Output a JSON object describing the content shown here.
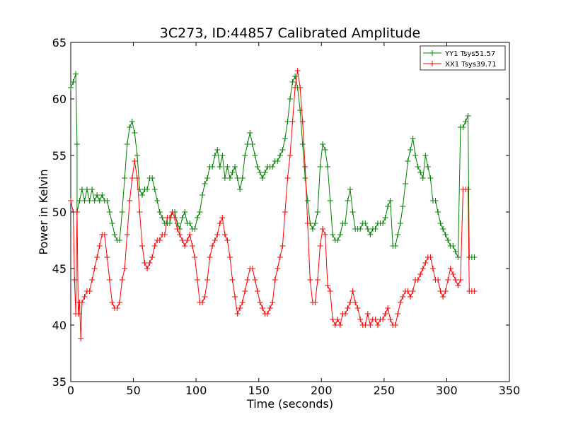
{
  "chart_data": {
    "type": "line",
    "title": "3C273, ID:44857 Calibrated Amplitude",
    "xlabel": "Time (seconds)",
    "ylabel": "Power in Kelvin",
    "xlim": [
      0,
      350
    ],
    "ylim": [
      35,
      65
    ],
    "x_ticks": [
      "0",
      "50",
      "100",
      "150",
      "200",
      "250",
      "300",
      "350"
    ],
    "y_ticks": [
      "35",
      "40",
      "45",
      "50",
      "55",
      "60",
      "65"
    ],
    "grid": false,
    "legend_placement": "top-right",
    "marker": "+",
    "series": [
      {
        "name": "YY1 Tsys51.57",
        "color": "#008000",
        "points": [
          [
            0,
            61
          ],
          [
            2,
            61.5
          ],
          [
            4,
            62.2
          ],
          [
            5,
            56
          ],
          [
            5,
            50
          ],
          [
            7,
            51
          ],
          [
            9,
            52
          ],
          [
            11,
            51
          ],
          [
            13,
            52
          ],
          [
            15,
            51
          ],
          [
            17,
            52
          ],
          [
            19,
            51
          ],
          [
            21,
            51.5
          ],
          [
            23,
            51
          ],
          [
            25,
            51.5
          ],
          [
            27,
            51
          ],
          [
            29,
            51
          ],
          [
            31,
            50
          ],
          [
            33,
            49
          ],
          [
            35,
            48
          ],
          [
            37,
            47.5
          ],
          [
            39,
            47.5
          ],
          [
            41,
            50
          ],
          [
            43,
            53
          ],
          [
            45,
            56
          ],
          [
            47,
            57.5
          ],
          [
            49,
            58
          ],
          [
            51,
            57
          ],
          [
            53,
            55
          ],
          [
            55,
            52
          ],
          [
            57,
            51.5
          ],
          [
            59,
            52
          ],
          [
            61,
            52
          ],
          [
            63,
            53
          ],
          [
            65,
            53
          ],
          [
            67,
            52
          ],
          [
            69,
            51
          ],
          [
            71,
            50
          ],
          [
            73,
            49.5
          ],
          [
            75,
            49
          ],
          [
            77,
            49
          ],
          [
            79,
            49
          ],
          [
            81,
            50
          ],
          [
            83,
            50
          ],
          [
            85,
            49
          ],
          [
            87,
            48.5
          ],
          [
            89,
            49.5
          ],
          [
            91,
            50
          ],
          [
            93,
            49
          ],
          [
            95,
            49
          ],
          [
            97,
            48.5
          ],
          [
            99,
            48.5
          ],
          [
            101,
            49.5
          ],
          [
            103,
            50
          ],
          [
            105,
            51.5
          ],
          [
            107,
            52.5
          ],
          [
            109,
            53
          ],
          [
            111,
            54
          ],
          [
            113,
            54
          ],
          [
            115,
            55
          ],
          [
            117,
            55.5
          ],
          [
            119,
            54
          ],
          [
            121,
            55
          ],
          [
            123,
            53
          ],
          [
            125,
            54
          ],
          [
            127,
            53
          ],
          [
            129,
            53.5
          ],
          [
            131,
            54
          ],
          [
            133,
            53
          ],
          [
            135,
            52
          ],
          [
            137,
            53
          ],
          [
            139,
            55
          ],
          [
            141,
            56
          ],
          [
            143,
            57
          ],
          [
            145,
            56
          ],
          [
            147,
            55
          ],
          [
            149,
            54
          ],
          [
            151,
            53.5
          ],
          [
            153,
            53
          ],
          [
            155,
            53.5
          ],
          [
            157,
            54
          ],
          [
            159,
            54
          ],
          [
            161,
            54
          ],
          [
            163,
            54.5
          ],
          [
            165,
            54.5
          ],
          [
            167,
            55
          ],
          [
            169,
            55.5
          ],
          [
            171,
            56.5
          ],
          [
            173,
            58
          ],
          [
            175,
            60
          ],
          [
            177,
            61.5
          ],
          [
            179,
            62
          ],
          [
            181,
            61
          ],
          [
            183,
            59
          ],
          [
            185,
            56
          ],
          [
            187,
            53
          ],
          [
            189,
            51
          ],
          [
            191,
            49
          ],
          [
            193,
            48.5
          ],
          [
            195,
            49
          ],
          [
            197,
            50
          ],
          [
            199,
            54
          ],
          [
            201,
            56
          ],
          [
            203,
            55.5
          ],
          [
            205,
            54
          ],
          [
            207,
            51
          ],
          [
            209,
            48
          ],
          [
            211,
            47.5
          ],
          [
            213,
            47.5
          ],
          [
            215,
            48
          ],
          [
            217,
            49
          ],
          [
            219,
            49
          ],
          [
            221,
            51
          ],
          [
            223,
            52
          ],
          [
            225,
            50
          ],
          [
            227,
            48.5
          ],
          [
            229,
            48.5
          ],
          [
            231,
            48.5
          ],
          [
            233,
            49
          ],
          [
            235,
            49
          ],
          [
            237,
            48.5
          ],
          [
            239,
            48
          ],
          [
            241,
            48.5
          ],
          [
            243,
            48.5
          ],
          [
            245,
            49
          ],
          [
            247,
            49
          ],
          [
            249,
            49
          ],
          [
            251,
            49.5
          ],
          [
            253,
            50.5
          ],
          [
            255,
            51
          ],
          [
            257,
            47
          ],
          [
            259,
            47
          ],
          [
            261,
            48
          ],
          [
            263,
            49
          ],
          [
            265,
            50.5
          ],
          [
            267,
            52.5
          ],
          [
            269,
            54.5
          ],
          [
            271,
            55.5
          ],
          [
            273,
            56.5
          ],
          [
            275,
            55
          ],
          [
            277,
            54
          ],
          [
            279,
            53.5
          ],
          [
            281,
            53
          ],
          [
            283,
            55
          ],
          [
            285,
            54
          ],
          [
            287,
            53
          ],
          [
            289,
            51
          ],
          [
            291,
            51
          ],
          [
            293,
            50
          ],
          [
            295,
            49
          ],
          [
            297,
            48.5
          ],
          [
            299,
            48
          ],
          [
            301,
            47.5
          ],
          [
            303,
            47
          ],
          [
            305,
            47
          ],
          [
            307,
            46.5
          ],
          [
            309,
            46
          ],
          [
            311,
            57.5
          ],
          [
            313,
            57.5
          ],
          [
            315,
            58
          ],
          [
            317,
            58.5
          ],
          [
            318,
            46
          ],
          [
            320,
            46
          ],
          [
            322,
            46
          ]
        ]
      },
      {
        "name": "XX1 Tsys39.71",
        "color": "#ff0000",
        "points": [
          [
            0,
            51
          ],
          [
            2,
            50
          ],
          [
            3,
            44
          ],
          [
            4,
            41
          ],
          [
            5,
            50
          ],
          [
            6,
            41
          ],
          [
            7,
            42
          ],
          [
            8,
            38.8
          ],
          [
            9,
            42
          ],
          [
            11,
            42.5
          ],
          [
            13,
            43
          ],
          [
            15,
            43
          ],
          [
            17,
            44
          ],
          [
            19,
            45
          ],
          [
            21,
            46
          ],
          [
            23,
            47
          ],
          [
            25,
            48
          ],
          [
            27,
            48
          ],
          [
            29,
            46
          ],
          [
            31,
            44
          ],
          [
            33,
            42
          ],
          [
            35,
            41.5
          ],
          [
            37,
            41.5
          ],
          [
            39,
            42
          ],
          [
            41,
            44
          ],
          [
            43,
            45
          ],
          [
            45,
            48
          ],
          [
            47,
            51
          ],
          [
            49,
            53
          ],
          [
            51,
            54.5
          ],
          [
            53,
            53
          ],
          [
            55,
            50
          ],
          [
            57,
            47
          ],
          [
            59,
            45.5
          ],
          [
            61,
            45
          ],
          [
            63,
            45.5
          ],
          [
            65,
            46
          ],
          [
            67,
            47
          ],
          [
            69,
            47.5
          ],
          [
            71,
            47.5
          ],
          [
            73,
            48
          ],
          [
            75,
            48
          ],
          [
            77,
            49.5
          ],
          [
            79,
            49.5
          ],
          [
            81,
            50
          ],
          [
            83,
            49.5
          ],
          [
            85,
            48.5
          ],
          [
            87,
            48
          ],
          [
            89,
            47.5
          ],
          [
            91,
            47
          ],
          [
            93,
            47.5
          ],
          [
            95,
            48
          ],
          [
            97,
            47
          ],
          [
            99,
            46
          ],
          [
            101,
            44
          ],
          [
            103,
            42
          ],
          [
            105,
            42
          ],
          [
            107,
            42.5
          ],
          [
            109,
            44
          ],
          [
            111,
            46
          ],
          [
            113,
            47
          ],
          [
            115,
            47.5
          ],
          [
            117,
            48
          ],
          [
            119,
            49
          ],
          [
            121,
            49.5
          ],
          [
            123,
            48
          ],
          [
            125,
            47.5
          ],
          [
            127,
            46
          ],
          [
            129,
            44
          ],
          [
            131,
            42.5
          ],
          [
            133,
            41
          ],
          [
            135,
            41.5
          ],
          [
            137,
            42
          ],
          [
            139,
            43
          ],
          [
            141,
            44
          ],
          [
            143,
            45
          ],
          [
            145,
            45
          ],
          [
            147,
            44
          ],
          [
            149,
            43
          ],
          [
            151,
            42
          ],
          [
            153,
            41.5
          ],
          [
            155,
            41
          ],
          [
            157,
            41
          ],
          [
            159,
            41.5
          ],
          [
            161,
            42
          ],
          [
            163,
            44
          ],
          [
            165,
            45
          ],
          [
            167,
            46
          ],
          [
            169,
            47
          ],
          [
            171,
            50
          ],
          [
            173,
            53
          ],
          [
            175,
            55
          ],
          [
            177,
            58
          ],
          [
            179,
            61
          ],
          [
            181,
            62.5
          ],
          [
            183,
            61
          ],
          [
            185,
            58
          ],
          [
            187,
            54
          ],
          [
            189,
            49
          ],
          [
            191,
            44
          ],
          [
            193,
            42
          ],
          [
            195,
            42
          ],
          [
            197,
            44
          ],
          [
            199,
            47
          ],
          [
            201,
            48.5
          ],
          [
            203,
            48
          ],
          [
            205,
            43.5
          ],
          [
            207,
            43
          ],
          [
            209,
            40.5
          ],
          [
            211,
            40
          ],
          [
            213,
            40.5
          ],
          [
            215,
            40
          ],
          [
            217,
            41
          ],
          [
            219,
            41
          ],
          [
            221,
            41.5
          ],
          [
            223,
            42
          ],
          [
            225,
            43
          ],
          [
            227,
            42
          ],
          [
            229,
            41.5
          ],
          [
            231,
            40.5
          ],
          [
            233,
            40
          ],
          [
            235,
            40
          ],
          [
            237,
            41
          ],
          [
            239,
            40
          ],
          [
            241,
            40.5
          ],
          [
            243,
            40.5
          ],
          [
            245,
            40
          ],
          [
            247,
            40.5
          ],
          [
            249,
            40.5
          ],
          [
            251,
            41
          ],
          [
            253,
            41.5
          ],
          [
            255,
            40.5
          ],
          [
            257,
            40
          ],
          [
            259,
            40
          ],
          [
            261,
            41
          ],
          [
            263,
            42
          ],
          [
            265,
            42.5
          ],
          [
            267,
            43
          ],
          [
            269,
            43
          ],
          [
            271,
            42.5
          ],
          [
            273,
            43
          ],
          [
            275,
            44
          ],
          [
            277,
            44
          ],
          [
            279,
            44.5
          ],
          [
            281,
            45
          ],
          [
            283,
            45.5
          ],
          [
            285,
            46
          ],
          [
            287,
            46
          ],
          [
            289,
            45
          ],
          [
            291,
            44
          ],
          [
            293,
            44
          ],
          [
            295,
            43
          ],
          [
            297,
            42.5
          ],
          [
            299,
            43
          ],
          [
            301,
            44
          ],
          [
            303,
            45
          ],
          [
            305,
            44.5
          ],
          [
            307,
            44
          ],
          [
            309,
            43.5
          ],
          [
            311,
            44
          ],
          [
            313,
            52
          ],
          [
            315,
            52
          ],
          [
            317,
            52
          ],
          [
            318,
            43
          ],
          [
            320,
            43
          ],
          [
            322,
            43
          ]
        ]
      }
    ]
  }
}
